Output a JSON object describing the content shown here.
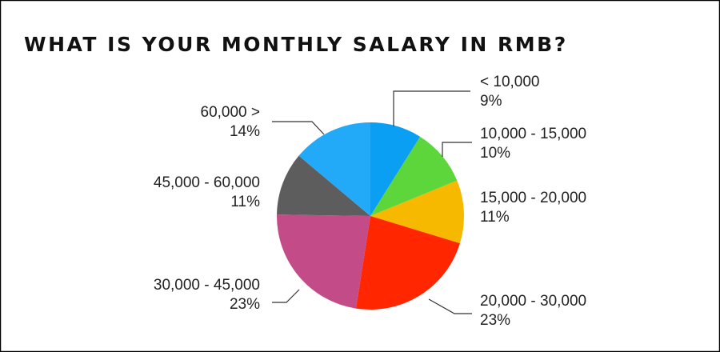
{
  "chart_data": {
    "type": "pie",
    "title": "WHAT IS YOUR MONTHLY SALARY IN RMB?",
    "categories": [
      "< 10,000",
      "10,000 - 15,000",
      "15,000 - 20,000",
      "20,000 - 30,000",
      "30,000 - 45,000",
      "45,000 - 60,000",
      "60,000 >"
    ],
    "values": [
      9,
      10,
      11,
      23,
      23,
      11,
      14
    ],
    "value_labels": [
      "9%",
      "10%",
      "11%",
      "23%",
      "23%",
      "11%",
      "14%"
    ],
    "colors": [
      "#0b9ff3",
      "#5cd63a",
      "#f7b800",
      "#ff2600",
      "#c24b88",
      "#5d5d5d",
      "#22aaf8"
    ]
  }
}
